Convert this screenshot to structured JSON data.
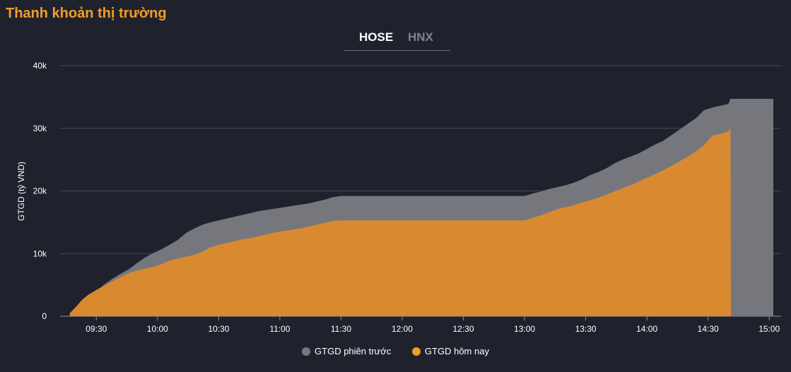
{
  "header": {
    "title": "Thanh khoản thị trường"
  },
  "tabs": [
    {
      "label": "HOSE",
      "active": true
    },
    {
      "label": "HNX",
      "active": false
    }
  ],
  "colors": {
    "previous": "#76777c",
    "today": "#d98a30",
    "grid": "#464a55",
    "accent": "#f39c27"
  },
  "chart_data": {
    "type": "area",
    "title": "Thanh khoản thị trường",
    "xlabel": "",
    "ylabel": "GTGD (tỷ VND)",
    "ylim": [
      0,
      40000
    ],
    "yticks": [
      0,
      10000,
      20000,
      30000,
      40000
    ],
    "ytick_labels": [
      "0",
      "10k",
      "20k",
      "30k",
      "40k"
    ],
    "xrange_minutes": [
      555,
      902
    ],
    "xticks": [
      {
        "t": 570,
        "label": "09:30"
      },
      {
        "t": 600,
        "label": "10:00"
      },
      {
        "t": 630,
        "label": "10:30"
      },
      {
        "t": 660,
        "label": "11:00"
      },
      {
        "t": 690,
        "label": "11:30"
      },
      {
        "t": 720,
        "label": "12:00"
      },
      {
        "t": 750,
        "label": "12:30"
      },
      {
        "t": 780,
        "label": "13:00"
      },
      {
        "t": 810,
        "label": "13:30"
      },
      {
        "t": 840,
        "label": "14:00"
      },
      {
        "t": 870,
        "label": "14:30"
      },
      {
        "t": 900,
        "label": "15:00"
      }
    ],
    "legend_position": "bottom-center",
    "series": [
      {
        "name": "GTGD phiên trước",
        "color": "#76777c",
        "points": [
          [
            557,
            300
          ],
          [
            560,
            1300
          ],
          [
            563,
            2300
          ],
          [
            566,
            3200
          ],
          [
            570,
            4000
          ],
          [
            574,
            5100
          ],
          [
            578,
            6000
          ],
          [
            582,
            6800
          ],
          [
            586,
            7500
          ],
          [
            590,
            8500
          ],
          [
            594,
            9400
          ],
          [
            598,
            10100
          ],
          [
            602,
            10700
          ],
          [
            606,
            11400
          ],
          [
            610,
            12200
          ],
          [
            614,
            13300
          ],
          [
            618,
            14000
          ],
          [
            622,
            14600
          ],
          [
            626,
            15000
          ],
          [
            630,
            15300
          ],
          [
            634,
            15600
          ],
          [
            638,
            15900
          ],
          [
            642,
            16200
          ],
          [
            646,
            16500
          ],
          [
            650,
            16800
          ],
          [
            654,
            17000
          ],
          [
            658,
            17200
          ],
          [
            662,
            17400
          ],
          [
            666,
            17600
          ],
          [
            670,
            17800
          ],
          [
            674,
            18000
          ],
          [
            678,
            18300
          ],
          [
            682,
            18600
          ],
          [
            686,
            19000
          ],
          [
            690,
            19200
          ],
          [
            700,
            19200
          ],
          [
            720,
            19200
          ],
          [
            740,
            19200
          ],
          [
            760,
            19200
          ],
          [
            770,
            19200
          ],
          [
            780,
            19200
          ],
          [
            784,
            19600
          ],
          [
            788,
            19900
          ],
          [
            792,
            20300
          ],
          [
            796,
            20600
          ],
          [
            800,
            20900
          ],
          [
            804,
            21300
          ],
          [
            808,
            21800
          ],
          [
            812,
            22500
          ],
          [
            816,
            23000
          ],
          [
            820,
            23600
          ],
          [
            824,
            24400
          ],
          [
            828,
            25000
          ],
          [
            832,
            25500
          ],
          [
            836,
            26000
          ],
          [
            840,
            26700
          ],
          [
            844,
            27400
          ],
          [
            848,
            28000
          ],
          [
            852,
            28900
          ],
          [
            856,
            29800
          ],
          [
            860,
            30700
          ],
          [
            864,
            31600
          ],
          [
            868,
            32900
          ],
          [
            872,
            33300
          ],
          [
            876,
            33600
          ],
          [
            880,
            33900
          ],
          [
            881,
            34700
          ],
          [
            886,
            34700
          ],
          [
            892,
            34700
          ],
          [
            902,
            34700
          ]
        ]
      },
      {
        "name": "GTGD hôm nay",
        "color": "#d98a30",
        "points": [
          [
            557,
            500
          ],
          [
            560,
            1500
          ],
          [
            563,
            2600
          ],
          [
            566,
            3400
          ],
          [
            570,
            4200
          ],
          [
            574,
            4900
          ],
          [
            578,
            5600
          ],
          [
            582,
            6300
          ],
          [
            586,
            6900
          ],
          [
            590,
            7300
          ],
          [
            594,
            7600
          ],
          [
            598,
            7900
          ],
          [
            602,
            8300
          ],
          [
            606,
            8900
          ],
          [
            610,
            9200
          ],
          [
            614,
            9500
          ],
          [
            618,
            9800
          ],
          [
            622,
            10300
          ],
          [
            626,
            11000
          ],
          [
            630,
            11400
          ],
          [
            634,
            11700
          ],
          [
            638,
            12000
          ],
          [
            642,
            12300
          ],
          [
            646,
            12500
          ],
          [
            650,
            12800
          ],
          [
            654,
            13100
          ],
          [
            658,
            13400
          ],
          [
            662,
            13600
          ],
          [
            666,
            13800
          ],
          [
            670,
            14000
          ],
          [
            674,
            14300
          ],
          [
            678,
            14600
          ],
          [
            682,
            14900
          ],
          [
            686,
            15200
          ],
          [
            690,
            15300
          ],
          [
            700,
            15300
          ],
          [
            720,
            15300
          ],
          [
            740,
            15300
          ],
          [
            760,
            15300
          ],
          [
            770,
            15300
          ],
          [
            780,
            15300
          ],
          [
            784,
            15700
          ],
          [
            788,
            16100
          ],
          [
            792,
            16600
          ],
          [
            796,
            17100
          ],
          [
            800,
            17400
          ],
          [
            804,
            17700
          ],
          [
            808,
            18100
          ],
          [
            812,
            18500
          ],
          [
            816,
            18900
          ],
          [
            820,
            19400
          ],
          [
            824,
            19900
          ],
          [
            828,
            20400
          ],
          [
            832,
            20900
          ],
          [
            836,
            21500
          ],
          [
            840,
            22100
          ],
          [
            844,
            22700
          ],
          [
            848,
            23300
          ],
          [
            852,
            24000
          ],
          [
            856,
            24700
          ],
          [
            860,
            25500
          ],
          [
            864,
            26300
          ],
          [
            868,
            27300
          ],
          [
            872,
            28800
          ],
          [
            876,
            29100
          ],
          [
            880,
            29500
          ],
          [
            881,
            30100
          ],
          [
            881.2,
            0
          ]
        ]
      }
    ]
  }
}
